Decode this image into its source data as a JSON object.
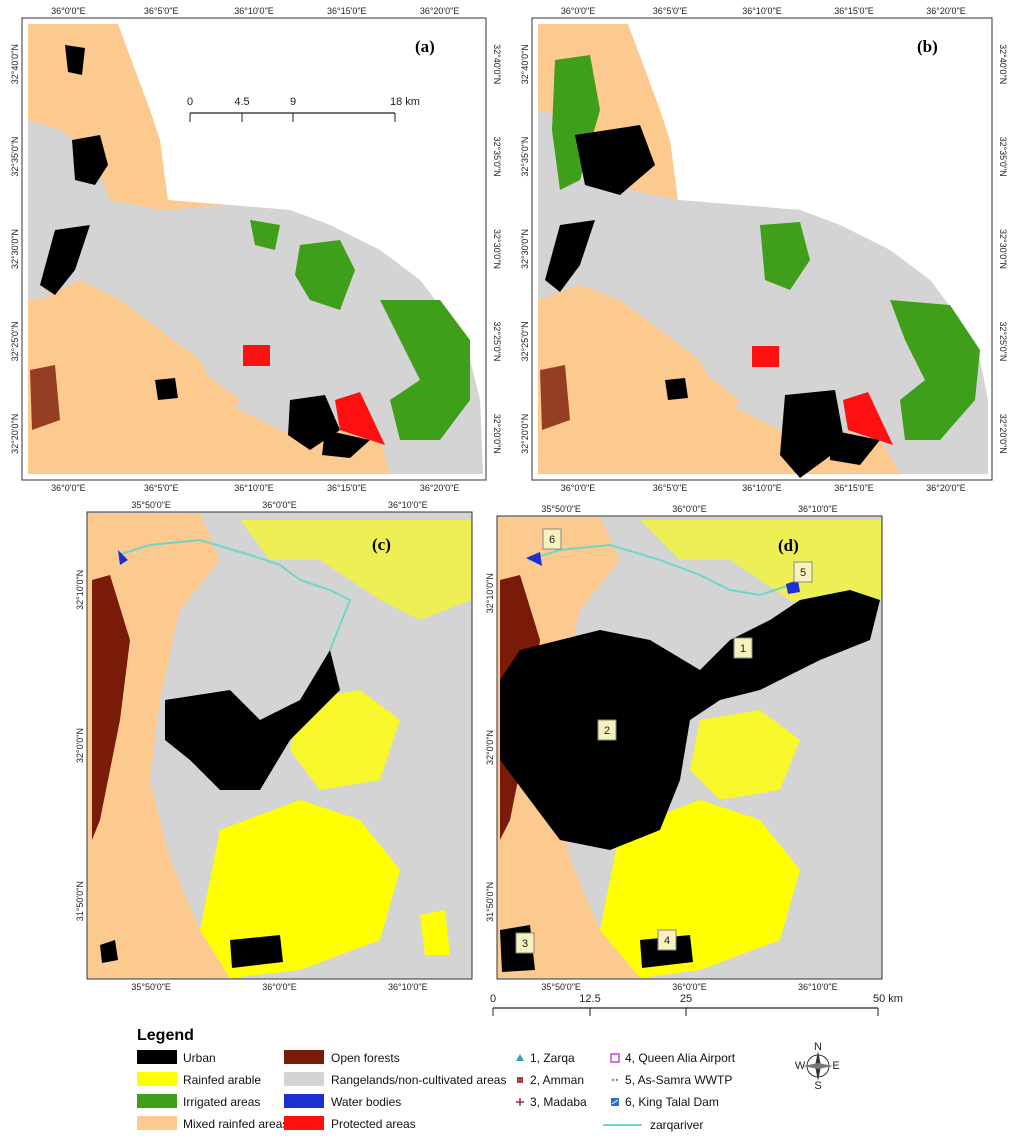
{
  "colors": {
    "urban": "#000000",
    "rainfed": "#ffff00",
    "irrigated": "#3f9e1a",
    "mixed": "#fcca8e",
    "open_forest": "#7a1a08",
    "rangeland": "#d4d4d4",
    "water": "#1f2fd0",
    "protected": "#ff1010",
    "river": "#6fd6c8"
  },
  "panels": [
    {
      "label": "(a)",
      "top_ticks": [
        "36°0'0\"E",
        "36°5'0\"E",
        "36°10'0\"E",
        "36°15'0\"E",
        "36°20'0\"E"
      ],
      "bottom_ticks": [
        "36°0'0\"E",
        "36°5'0\"E",
        "36°10'0\"E",
        "36°15'0\"E",
        "36°20'0\"E"
      ],
      "left_ticks": [
        "32°40'0\"N",
        "32°35'0\"N",
        "32°30'0\"N",
        "32°25'0\"N",
        "32°20'0\"N"
      ],
      "right_ticks": [
        "32°40'0\"N",
        "32°35'0\"N",
        "32°30'0\"N",
        "32°25'0\"N",
        "32°20'0\"N"
      ]
    },
    {
      "label": "(b)",
      "top_ticks": [
        "36°0'0\"E",
        "36°5'0\"E",
        "36°10'0\"E",
        "36°15'0\"E",
        "36°20'0\"E"
      ],
      "bottom_ticks": [
        "36°0'0\"E",
        "36°5'0\"E",
        "36°10'0\"E",
        "36°15'0\"E",
        "36°20'0\"E"
      ],
      "left_ticks": [
        "32°40'0\"N",
        "32°35'0\"N",
        "32°30'0\"N",
        "32°25'0\"N",
        "32°20'0\"N"
      ],
      "right_ticks": [
        "32°40'0\"N",
        "32°35'0\"N",
        "32°30'0\"N",
        "32°25'0\"N",
        "32°20'0\"N"
      ]
    },
    {
      "label": "(c)",
      "top_ticks": [
        "35°50'0\"E",
        "36°0'0\"E",
        "36°10'0\"E"
      ],
      "bottom_ticks": [
        "35°50'0\"E",
        "36°0'0\"E",
        "36°10'0\"E"
      ],
      "left_ticks": [
        "32°10'0\"N",
        "32°0'0\"N",
        "31°50'0\"N"
      ],
      "right_ticks": []
    },
    {
      "label": "(d)",
      "top_ticks": [
        "35°50'0\"E",
        "36°0'0\"E",
        "36°10'0\"E"
      ],
      "bottom_ticks": [
        "35°50'0\"E",
        "36°0'0\"E",
        "36°10'0\"E"
      ],
      "left_ticks": [
        "32°10'0\"N",
        "32°0'0\"N",
        "31°50'0\"N"
      ],
      "right_ticks": []
    }
  ],
  "scale_a": {
    "labels": [
      "0",
      "4.5",
      "9",
      "18 km"
    ]
  },
  "scale_d": {
    "labels": [
      "0",
      "12.5",
      "25",
      "50 km"
    ]
  },
  "site_badges": [
    "1",
    "2",
    "3",
    "4",
    "5",
    "6"
  ],
  "legend": {
    "title": "Legend",
    "classes": [
      {
        "label": "Urban",
        "color": "#000000"
      },
      {
        "label": "Rainfed arable",
        "color": "#ffff00"
      },
      {
        "label": "Irrigated areas",
        "color": "#3f9e1a"
      },
      {
        "label": "Mixed rainfed areas",
        "color": "#fcca8e"
      },
      {
        "label": "Open forests",
        "color": "#7a1a08"
      },
      {
        "label": "Rangelands/non-cultivated areas",
        "color": "#d4d4d4"
      },
      {
        "label": "Water bodies",
        "color": "#1f2fd0"
      },
      {
        "label": "Protected areas",
        "color": "#ff1010"
      }
    ],
    "sites": [
      {
        "label": "1, Zarqa",
        "symbol": "triangle-icon",
        "color": "#2aa6b8"
      },
      {
        "label": "2, Amman",
        "symbol": "square-icon",
        "color": "#b0404a"
      },
      {
        "label": "3, Madaba",
        "symbol": "plus-icon",
        "color": "#a0206a"
      },
      {
        "label": "4, Queen Alia Airport",
        "symbol": "square-outline-icon",
        "color": "#d040d0"
      },
      {
        "label": "5, As-Samra WWTP",
        "symbol": "dots-icon",
        "color": "#888888"
      },
      {
        "label": "6, King Talal Dam",
        "symbol": "dam-icon",
        "color": "#2f6fd0"
      }
    ],
    "river_label": "zarqariver"
  },
  "north_arrow": {
    "n": "N",
    "s": "S",
    "e": "E",
    "w": "W"
  }
}
